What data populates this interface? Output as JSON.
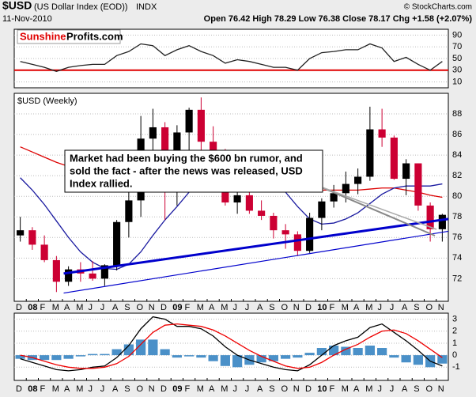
{
  "header": {
    "symbol": "$USD",
    "name": "(US Dollar Index (EOD))",
    "exchange": "INDX",
    "date": "11-Nov-2010",
    "quote": "Open 76.42  High 78.29  Low 76.38  Close 78.17  Chg +1.58 (+2.07%)",
    "copyright": "© StockCharts.com",
    "logo": {
      "first": "Sunshine",
      "second": "Profits.com"
    }
  },
  "chart_data": [
    {
      "type": "line",
      "ylim": [
        0,
        100
      ],
      "yticks": [
        10,
        30,
        50,
        70,
        90
      ],
      "grid": true,
      "ref_line": {
        "value": 30,
        "color": "#e00000"
      },
      "series": [
        {
          "color": "#222222",
          "values": [
            45,
            40,
            35,
            28,
            35,
            38,
            40,
            40,
            55,
            62,
            75,
            72,
            55,
            65,
            72,
            62,
            55,
            42,
            48,
            45,
            40,
            35,
            35,
            30,
            50,
            60,
            62,
            65,
            65,
            75,
            68,
            45,
            52,
            40,
            30,
            45
          ]
        }
      ]
    },
    {
      "type": "candlestick",
      "title": "$USD (Weekly)",
      "ylim": [
        69.8,
        90
      ],
      "yticks": [
        72,
        74,
        76,
        78,
        80,
        82,
        84,
        86,
        88
      ],
      "grid": true,
      "categories": [
        "D",
        "08",
        "F",
        "M",
        "A",
        "M",
        "J",
        "J",
        "A",
        "S",
        "O",
        "N",
        "D",
        "09",
        "F",
        "M",
        "A",
        "M",
        "J",
        "J",
        "A",
        "S",
        "O",
        "N",
        "D",
        "10",
        "F",
        "M",
        "A",
        "M",
        "J",
        "J",
        "A",
        "S",
        "O",
        "N"
      ],
      "open": [
        76.2,
        76.7,
        75.3,
        73.8,
        71.7,
        72.9,
        72.5,
        72.0,
        73.3,
        77.5,
        79.6,
        85.6,
        86.7,
        81.3,
        86.2,
        88.4,
        85.3,
        84.4,
        79.4,
        80.1,
        78.6,
        78.1,
        76.7,
        76.3,
        74.7,
        77.9,
        79.5,
        80.3,
        81.2,
        81.9,
        86.5,
        85.7,
        81.7,
        83.2,
        79.1,
        76.8
      ],
      "high": [
        78.0,
        77.0,
        76.2,
        74.2,
        73.2,
        73.6,
        73.7,
        73.4,
        77.7,
        80.4,
        87.8,
        88.5,
        87.2,
        86.9,
        88.6,
        89.6,
        86.8,
        84.6,
        81.2,
        81.3,
        79.6,
        78.4,
        77.3,
        76.6,
        78.4,
        79.8,
        81.1,
        82.4,
        82.7,
        88.7,
        88.5,
        85.9,
        83.6,
        83.2,
        79.4,
        78.3
      ],
      "low": [
        75.6,
        74.8,
        73.6,
        70.7,
        71.3,
        71.7,
        71.8,
        71.3,
        72.8,
        76.0,
        78.0,
        83.5,
        77.7,
        79.1,
        84.4,
        82.6,
        83.0,
        79.1,
        78.3,
        78.3,
        77.7,
        75.9,
        74.9,
        74.2,
        74.5,
        76.7,
        78.9,
        79.4,
        80.2,
        81.5,
        84.8,
        81.6,
        80.1,
        78.6,
        75.6,
        75.6
      ],
      "close": [
        76.7,
        75.3,
        73.8,
        71.7,
        72.9,
        72.5,
        72.0,
        73.3,
        77.5,
        79.6,
        85.6,
        86.7,
        81.3,
        86.2,
        88.4,
        85.3,
        84.4,
        79.4,
        80.1,
        78.6,
        78.1,
        76.7,
        76.3,
        74.7,
        77.9,
        79.5,
        80.3,
        81.2,
        81.9,
        86.5,
        85.7,
        81.7,
        83.2,
        79.1,
        76.8,
        78.2
      ],
      "up_color": "#000000",
      "down_color": "#cc0033",
      "series": [
        {
          "color": "#dd0000",
          "values": [
            84.8,
            84.3,
            83.8,
            83.3,
            82.9,
            82.5,
            82.1,
            81.8,
            81.6,
            81.5,
            81.6,
            81.8,
            82.0,
            82.2,
            82.4,
            82.6,
            82.7,
            82.6,
            82.4,
            82.1,
            81.8,
            81.5,
            81.2,
            80.9,
            80.7,
            80.6,
            80.6,
            80.6,
            80.6,
            80.7,
            80.8,
            80.8,
            80.6,
            80.4,
            80.1,
            79.9
          ]
        },
        {
          "color": "#1a1aa0",
          "values": [
            81.8,
            80.6,
            79.2,
            77.6,
            76.0,
            74.6,
            73.6,
            73.0,
            72.9,
            73.4,
            74.6,
            76.2,
            77.7,
            79.0,
            80.4,
            81.8,
            83.0,
            83.9,
            84.2,
            83.8,
            83.0,
            81.8,
            80.4,
            79.0,
            77.8,
            77.3,
            77.4,
            77.8,
            78.4,
            79.3,
            80.2,
            80.8,
            81.0,
            81.0,
            81.0,
            81.2
          ]
        }
      ],
      "trendlines": [
        {
          "x0": 3.6,
          "y0": 72.5,
          "x1": 35.5,
          "y1": 77.8,
          "color": "#0000cc",
          "width": 3
        },
        {
          "x0": 3.6,
          "y0": 70.6,
          "x1": 35.5,
          "y1": 76.6,
          "color": "#0000cc",
          "width": 1.2
        }
      ],
      "annotation": [
        "Market had been buying the $600 bn rumor, and",
        "sold the fact - after the news was released, USD",
        "Index rallied."
      ]
    },
    {
      "type": "macd",
      "ylim": [
        -2.1,
        3.5
      ],
      "yticks": [
        3,
        2,
        1,
        0,
        -1
      ],
      "grid": true,
      "categories": [
        "D",
        "08",
        "F",
        "M",
        "A",
        "M",
        "J",
        "J",
        "A",
        "S",
        "O",
        "N",
        "D",
        "09",
        "F",
        "M",
        "A",
        "M",
        "J",
        "J",
        "A",
        "S",
        "O",
        "N",
        "D",
        "10",
        "F",
        "M",
        "A",
        "M",
        "J",
        "J",
        "A",
        "S",
        "O",
        "N"
      ],
      "series": [
        {
          "color": "#000000",
          "values": [
            -0.3,
            -0.6,
            -0.9,
            -1.2,
            -1.3,
            -1.2,
            -1.0,
            -0.9,
            -0.2,
            0.8,
            2.2,
            3.2,
            3.0,
            2.4,
            2.4,
            2.2,
            1.6,
            0.7,
            0.0,
            -0.4,
            -0.7,
            -1.0,
            -1.2,
            -1.3,
            -0.8,
            0.0,
            0.8,
            1.2,
            1.5,
            2.3,
            2.6,
            1.9,
            1.2,
            0.4,
            -0.5,
            -0.9
          ]
        },
        {
          "color": "#ee0000",
          "values": [
            0.0,
            -0.2,
            -0.5,
            -0.8,
            -1.0,
            -1.1,
            -1.1,
            -1.0,
            -0.7,
            -0.1,
            0.9,
            1.9,
            2.5,
            2.6,
            2.5,
            2.4,
            2.1,
            1.6,
            1.0,
            0.4,
            -0.1,
            -0.5,
            -0.9,
            -1.1,
            -1.0,
            -0.6,
            0.0,
            0.5,
            0.9,
            1.5,
            2.0,
            2.1,
            1.8,
            1.2,
            0.5,
            -0.2
          ]
        }
      ],
      "histogram": {
        "color": "#4a90c8",
        "values": [
          -0.3,
          -0.4,
          -0.4,
          -0.4,
          -0.3,
          -0.1,
          0.1,
          0.1,
          0.5,
          0.9,
          1.3,
          1.3,
          0.5,
          -0.2,
          -0.1,
          -0.2,
          -0.5,
          -0.9,
          -1.0,
          -0.8,
          -0.6,
          -0.5,
          -0.3,
          -0.2,
          0.2,
          0.6,
          0.8,
          0.7,
          0.6,
          0.8,
          0.6,
          -0.2,
          -0.6,
          -0.8,
          -1.0,
          -0.7
        ]
      }
    }
  ]
}
